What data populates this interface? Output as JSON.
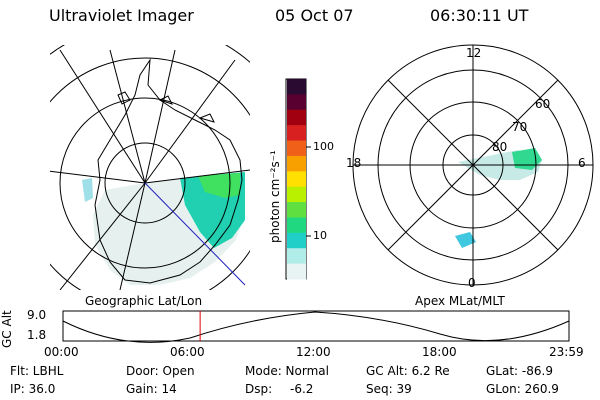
{
  "header": {
    "instrument": "Ultraviolet Imager",
    "date": "05 Oct 07",
    "time": "06:30:11 UT"
  },
  "left_panel": {
    "caption": "Geographic Lat/Lon"
  },
  "right_panel": {
    "caption": "Apex MLat/MLT",
    "mlt_labels": {
      "top": "12",
      "left": "18",
      "right": "6",
      "bottom": "0"
    },
    "lat_labels": [
      "60",
      "70",
      "80"
    ]
  },
  "colorbar": {
    "unit": "photon cm⁻²s⁻¹",
    "ticks": [
      {
        "label": "100",
        "value": 100
      },
      {
        "label": "10",
        "value": 10
      }
    ],
    "colors": [
      "#2a0a30",
      "#5a0030",
      "#a00010",
      "#d82020",
      "#f06018",
      "#f8a000",
      "#ffe000",
      "#b8f000",
      "#60e040",
      "#20d880",
      "#20d0c8",
      "#b0ece8",
      "#e8f4f4"
    ]
  },
  "altitude_strip": {
    "axis_label": "GC Alt",
    "y_ticks": [
      "9.0",
      "1.8"
    ],
    "x_ticks": [
      "00:00",
      "06:00",
      "12:00",
      "18:00",
      "23:59"
    ],
    "marker_time_fraction": 0.271
  },
  "info": {
    "filter": "Flt: LBHL",
    "door": "Door: Open",
    "mode": "Mode: Normal",
    "gc_alt": "GC Alt: 6.2 Re",
    "glat": "GLat: -86.9",
    "ip": "IP: 36.0",
    "gain": "Gain: 14",
    "dsp_label": "Dsp:",
    "dsp_value": "-6.2",
    "seq": "Seq: 39",
    "glon": "GLon: 260.9"
  }
}
